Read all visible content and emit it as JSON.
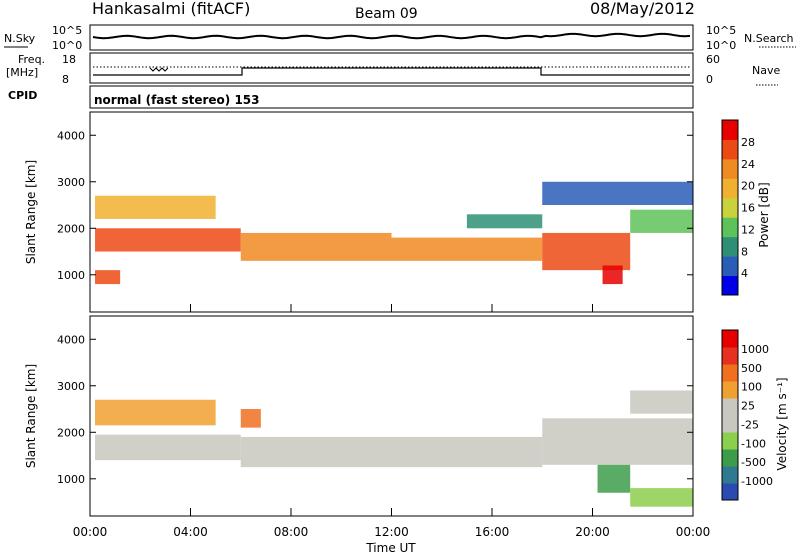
{
  "header": {
    "station": "Hankasalmi (fitACF)",
    "beam": "Beam 09",
    "date": "08/May/2012"
  },
  "top_panels": {
    "nsky_label": "N.Sky",
    "nsky_ticks": [
      "10^5",
      "10^0"
    ],
    "nsearch_label": "N.Search",
    "nsearch_ticks": [
      "10^5",
      "10^0"
    ],
    "freq_label": "Freq.",
    "freq_unit": "[MHz]",
    "freq_ticks": [
      "18",
      "8"
    ],
    "nave_label": "Nave",
    "nave_ticks": [
      "60",
      "0"
    ],
    "cpid_label": "CPID",
    "cpid_text": "normal (fast stereo)  153"
  },
  "chart_data": [
    {
      "type": "heatmap",
      "name": "power",
      "ylabel": "Slant Range [km]",
      "ylim": [
        200,
        4500
      ],
      "yticks": [
        1000,
        2000,
        3000,
        4000
      ],
      "xlim": [
        0,
        24
      ],
      "colorbar_label": "Power [dB]",
      "colorbar_ticks": [
        "28",
        "24",
        "20",
        "16",
        "12",
        "8",
        "4"
      ],
      "colorbar_colors": [
        "#0000e6",
        "#2a5db8",
        "#2e8f76",
        "#5ec25a",
        "#c8d23c",
        "#f0b030",
        "#f08a22",
        "#ec4a14",
        "#e60000"
      ],
      "bands": [
        {
          "t0": 0.2,
          "t1": 6.0,
          "r0": 1500,
          "r1": 2000,
          "color": "#ec4a14"
        },
        {
          "t0": 6.0,
          "t1": 12.0,
          "r0": 1300,
          "r1": 1900,
          "color": "#f08a22"
        },
        {
          "t0": 12.0,
          "t1": 18.0,
          "r0": 1300,
          "r1": 1800,
          "color": "#f08a22"
        },
        {
          "t0": 18.0,
          "t1": 21.5,
          "r0": 1100,
          "r1": 1900,
          "color": "#ec4a14"
        },
        {
          "t0": 21.5,
          "t1": 24.0,
          "r0": 1900,
          "r1": 2400,
          "color": "#5ec25a"
        },
        {
          "t0": 0.2,
          "t1": 5.0,
          "r0": 2200,
          "r1": 2700,
          "color": "#f0b030"
        },
        {
          "t0": 0.2,
          "t1": 1.2,
          "r0": 800,
          "r1": 1100,
          "color": "#ec4a14"
        },
        {
          "t0": 20.4,
          "t1": 21.2,
          "r0": 800,
          "r1": 1200,
          "color": "#e60000"
        },
        {
          "t0": 15.0,
          "t1": 18.0,
          "r0": 2000,
          "r1": 2300,
          "color": "#2e8f76"
        },
        {
          "t0": 18.0,
          "t1": 24.0,
          "r0": 2500,
          "r1": 3000,
          "color": "#2a5db8"
        }
      ]
    },
    {
      "type": "heatmap",
      "name": "velocity",
      "ylabel": "Slant Range [km]",
      "ylim": [
        200,
        4500
      ],
      "yticks": [
        1000,
        2000,
        3000,
        4000
      ],
      "xlim": [
        0,
        24
      ],
      "xlabel": "Time UT",
      "xticks": [
        "00:00",
        "04:00",
        "08:00",
        "12:00",
        "16:00",
        "20:00",
        "00:00"
      ],
      "colorbar_label": "Velocity [m s⁻¹]",
      "colorbar_ticks": [
        "1000",
        "500",
        "100",
        "25",
        "-25",
        "-100",
        "-500",
        "-1000"
      ],
      "colorbar_colors": [
        "#2a4cb0",
        "#2f7a8f",
        "#3c9c4a",
        "#8ccf4c",
        "#c8c8c0",
        "#c8c8c0",
        "#f0a030",
        "#f07020",
        "#e63020",
        "#e60000"
      ],
      "bands": [
        {
          "t0": 0.2,
          "t1": 6.0,
          "r0": 1400,
          "r1": 1950,
          "color": "#c8c8c0"
        },
        {
          "t0": 6.0,
          "t1": 18.0,
          "r0": 1250,
          "r1": 1900,
          "color": "#c8c8c0"
        },
        {
          "t0": 18.0,
          "t1": 24.0,
          "r0": 1300,
          "r1": 2300,
          "color": "#c8c8c0"
        },
        {
          "t0": 0.2,
          "t1": 5.0,
          "r0": 2150,
          "r1": 2700,
          "color": "#f0a030"
        },
        {
          "t0": 6.0,
          "t1": 6.8,
          "r0": 2100,
          "r1": 2500,
          "color": "#f07020"
        },
        {
          "t0": 20.2,
          "t1": 21.5,
          "r0": 700,
          "r1": 1300,
          "color": "#3c9c4a"
        },
        {
          "t0": 21.5,
          "t1": 24.0,
          "r0": 400,
          "r1": 800,
          "color": "#8ccf4c"
        },
        {
          "t0": 21.5,
          "t1": 24.0,
          "r0": 2400,
          "r1": 2900,
          "color": "#c8c8c0"
        }
      ]
    }
  ]
}
